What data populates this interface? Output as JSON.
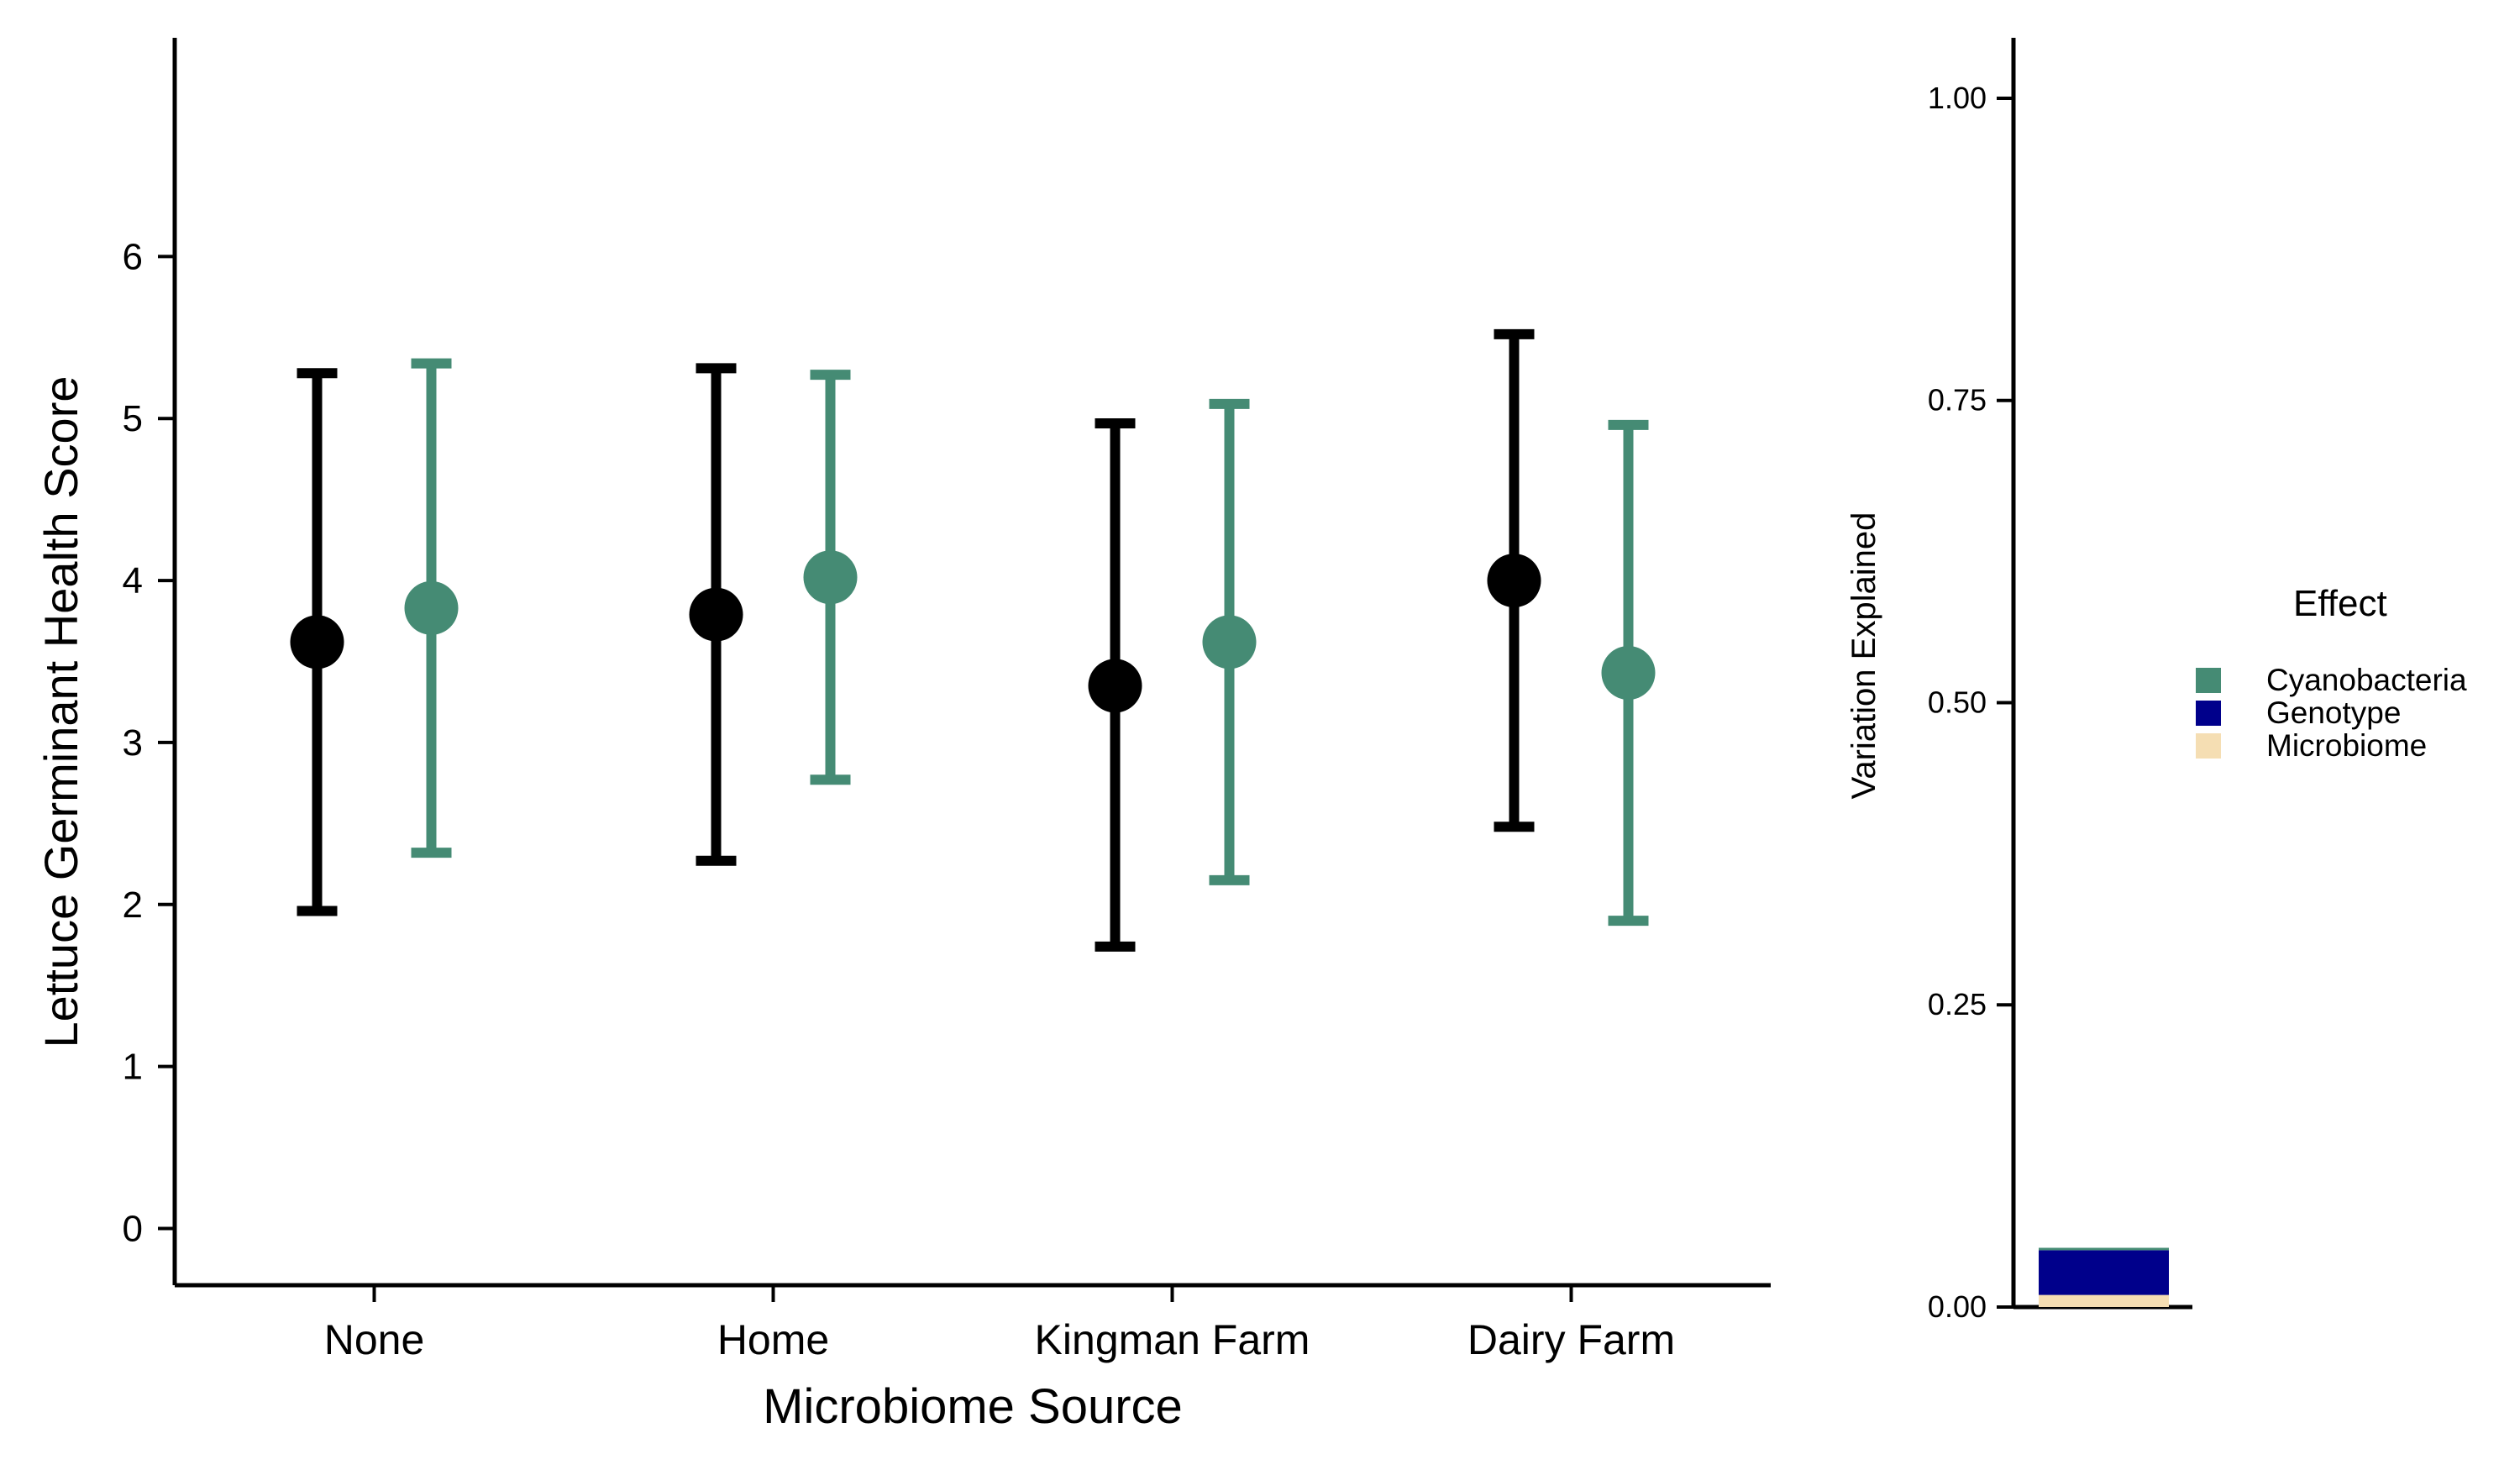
{
  "chart_data": [
    {
      "type": "scatter",
      "xlabel": "Microbiome Source",
      "ylabel": "Lettuce Germinant Health Score",
      "categories": [
        "None",
        "Home",
        "Kingman Farm",
        "Dairy Farm"
      ],
      "ylim": [
        -0.35,
        7.35
      ],
      "yticks": [
        0,
        1,
        2,
        3,
        4,
        5,
        6
      ],
      "grid": false,
      "series": [
        {
          "color": "#000000",
          "values": [
            3.62,
            3.79,
            3.35,
            4.0
          ],
          "lower": [
            1.96,
            2.27,
            1.74,
            2.48
          ],
          "upper": [
            5.28,
            5.31,
            4.97,
            5.52
          ]
        },
        {
          "color": "#458B74",
          "values": [
            3.83,
            4.02,
            3.62,
            3.43
          ],
          "lower": [
            2.32,
            2.77,
            2.15,
            1.9
          ],
          "upper": [
            5.34,
            5.27,
            5.09,
            4.96
          ]
        }
      ]
    },
    {
      "type": "bar",
      "stacked": true,
      "ylabel": "Variation Explained",
      "ylim": [
        0,
        1.05
      ],
      "yticks": [
        "0.00",
        "0.25",
        "0.50",
        "0.75",
        "1.00"
      ],
      "legend_title": "Effect",
      "legend_position": "right",
      "series": [
        {
          "name": "Microbiome",
          "color": "#F5DEB3",
          "value": 0.01
        },
        {
          "name": "Genotype",
          "color": "#00008B",
          "value": 0.037
        },
        {
          "name": "Cyanobacteria",
          "color": "#458B74",
          "value": 0.002
        }
      ]
    }
  ]
}
